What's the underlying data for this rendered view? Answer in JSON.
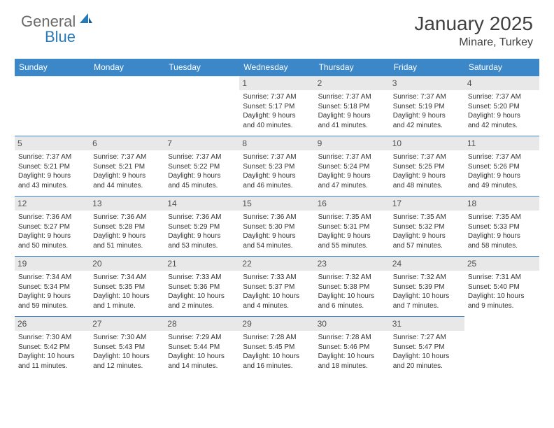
{
  "logo": {
    "general": "General",
    "blue": "Blue"
  },
  "title": "January 2025",
  "location": "Minare, Turkey",
  "columns": [
    "Sunday",
    "Monday",
    "Tuesday",
    "Wednesday",
    "Thursday",
    "Friday",
    "Saturday"
  ],
  "colors": {
    "header_bg": "#3b87c8",
    "header_text": "#ffffff",
    "daynum_bg": "#e8e8e8",
    "border": "#3b87c8",
    "logo_gray": "#6a6a6a",
    "logo_blue": "#2a7ab8"
  },
  "leading_blanks": 3,
  "days": [
    {
      "n": "1",
      "sunrise": "Sunrise: 7:37 AM",
      "sunset": "Sunset: 5:17 PM",
      "day1": "Daylight: 9 hours",
      "day2": "and 40 minutes."
    },
    {
      "n": "2",
      "sunrise": "Sunrise: 7:37 AM",
      "sunset": "Sunset: 5:18 PM",
      "day1": "Daylight: 9 hours",
      "day2": "and 41 minutes."
    },
    {
      "n": "3",
      "sunrise": "Sunrise: 7:37 AM",
      "sunset": "Sunset: 5:19 PM",
      "day1": "Daylight: 9 hours",
      "day2": "and 42 minutes."
    },
    {
      "n": "4",
      "sunrise": "Sunrise: 7:37 AM",
      "sunset": "Sunset: 5:20 PM",
      "day1": "Daylight: 9 hours",
      "day2": "and 42 minutes."
    },
    {
      "n": "5",
      "sunrise": "Sunrise: 7:37 AM",
      "sunset": "Sunset: 5:21 PM",
      "day1": "Daylight: 9 hours",
      "day2": "and 43 minutes."
    },
    {
      "n": "6",
      "sunrise": "Sunrise: 7:37 AM",
      "sunset": "Sunset: 5:21 PM",
      "day1": "Daylight: 9 hours",
      "day2": "and 44 minutes."
    },
    {
      "n": "7",
      "sunrise": "Sunrise: 7:37 AM",
      "sunset": "Sunset: 5:22 PM",
      "day1": "Daylight: 9 hours",
      "day2": "and 45 minutes."
    },
    {
      "n": "8",
      "sunrise": "Sunrise: 7:37 AM",
      "sunset": "Sunset: 5:23 PM",
      "day1": "Daylight: 9 hours",
      "day2": "and 46 minutes."
    },
    {
      "n": "9",
      "sunrise": "Sunrise: 7:37 AM",
      "sunset": "Sunset: 5:24 PM",
      "day1": "Daylight: 9 hours",
      "day2": "and 47 minutes."
    },
    {
      "n": "10",
      "sunrise": "Sunrise: 7:37 AM",
      "sunset": "Sunset: 5:25 PM",
      "day1": "Daylight: 9 hours",
      "day2": "and 48 minutes."
    },
    {
      "n": "11",
      "sunrise": "Sunrise: 7:37 AM",
      "sunset": "Sunset: 5:26 PM",
      "day1": "Daylight: 9 hours",
      "day2": "and 49 minutes."
    },
    {
      "n": "12",
      "sunrise": "Sunrise: 7:36 AM",
      "sunset": "Sunset: 5:27 PM",
      "day1": "Daylight: 9 hours",
      "day2": "and 50 minutes."
    },
    {
      "n": "13",
      "sunrise": "Sunrise: 7:36 AM",
      "sunset": "Sunset: 5:28 PM",
      "day1": "Daylight: 9 hours",
      "day2": "and 51 minutes."
    },
    {
      "n": "14",
      "sunrise": "Sunrise: 7:36 AM",
      "sunset": "Sunset: 5:29 PM",
      "day1": "Daylight: 9 hours",
      "day2": "and 53 minutes."
    },
    {
      "n": "15",
      "sunrise": "Sunrise: 7:36 AM",
      "sunset": "Sunset: 5:30 PM",
      "day1": "Daylight: 9 hours",
      "day2": "and 54 minutes."
    },
    {
      "n": "16",
      "sunrise": "Sunrise: 7:35 AM",
      "sunset": "Sunset: 5:31 PM",
      "day1": "Daylight: 9 hours",
      "day2": "and 55 minutes."
    },
    {
      "n": "17",
      "sunrise": "Sunrise: 7:35 AM",
      "sunset": "Sunset: 5:32 PM",
      "day1": "Daylight: 9 hours",
      "day2": "and 57 minutes."
    },
    {
      "n": "18",
      "sunrise": "Sunrise: 7:35 AM",
      "sunset": "Sunset: 5:33 PM",
      "day1": "Daylight: 9 hours",
      "day2": "and 58 minutes."
    },
    {
      "n": "19",
      "sunrise": "Sunrise: 7:34 AM",
      "sunset": "Sunset: 5:34 PM",
      "day1": "Daylight: 9 hours",
      "day2": "and 59 minutes."
    },
    {
      "n": "20",
      "sunrise": "Sunrise: 7:34 AM",
      "sunset": "Sunset: 5:35 PM",
      "day1": "Daylight: 10 hours",
      "day2": "and 1 minute."
    },
    {
      "n": "21",
      "sunrise": "Sunrise: 7:33 AM",
      "sunset": "Sunset: 5:36 PM",
      "day1": "Daylight: 10 hours",
      "day2": "and 2 minutes."
    },
    {
      "n": "22",
      "sunrise": "Sunrise: 7:33 AM",
      "sunset": "Sunset: 5:37 PM",
      "day1": "Daylight: 10 hours",
      "day2": "and 4 minutes."
    },
    {
      "n": "23",
      "sunrise": "Sunrise: 7:32 AM",
      "sunset": "Sunset: 5:38 PM",
      "day1": "Daylight: 10 hours",
      "day2": "and 6 minutes."
    },
    {
      "n": "24",
      "sunrise": "Sunrise: 7:32 AM",
      "sunset": "Sunset: 5:39 PM",
      "day1": "Daylight: 10 hours",
      "day2": "and 7 minutes."
    },
    {
      "n": "25",
      "sunrise": "Sunrise: 7:31 AM",
      "sunset": "Sunset: 5:40 PM",
      "day1": "Daylight: 10 hours",
      "day2": "and 9 minutes."
    },
    {
      "n": "26",
      "sunrise": "Sunrise: 7:30 AM",
      "sunset": "Sunset: 5:42 PM",
      "day1": "Daylight: 10 hours",
      "day2": "and 11 minutes."
    },
    {
      "n": "27",
      "sunrise": "Sunrise: 7:30 AM",
      "sunset": "Sunset: 5:43 PM",
      "day1": "Daylight: 10 hours",
      "day2": "and 12 minutes."
    },
    {
      "n": "28",
      "sunrise": "Sunrise: 7:29 AM",
      "sunset": "Sunset: 5:44 PM",
      "day1": "Daylight: 10 hours",
      "day2": "and 14 minutes."
    },
    {
      "n": "29",
      "sunrise": "Sunrise: 7:28 AM",
      "sunset": "Sunset: 5:45 PM",
      "day1": "Daylight: 10 hours",
      "day2": "and 16 minutes."
    },
    {
      "n": "30",
      "sunrise": "Sunrise: 7:28 AM",
      "sunset": "Sunset: 5:46 PM",
      "day1": "Daylight: 10 hours",
      "day2": "and 18 minutes."
    },
    {
      "n": "31",
      "sunrise": "Sunrise: 7:27 AM",
      "sunset": "Sunset: 5:47 PM",
      "day1": "Daylight: 10 hours",
      "day2": "and 20 minutes."
    }
  ]
}
